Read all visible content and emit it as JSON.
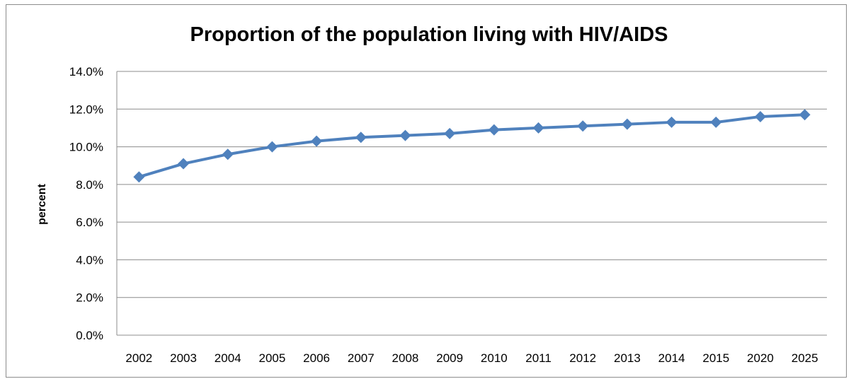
{
  "chart_data": {
    "type": "line",
    "title": "Proportion of the population living with HIV/AIDS",
    "xlabel": "",
    "ylabel": "percent",
    "categories": [
      "2002",
      "2003",
      "2004",
      "2005",
      "2006",
      "2007",
      "2008",
      "2009",
      "2010",
      "2011",
      "2012",
      "2013",
      "2014",
      "2015",
      "2020",
      "2025"
    ],
    "series": [
      {
        "values": [
          8.4,
          9.1,
          9.6,
          10.0,
          10.3,
          10.5,
          10.6,
          10.7,
          10.9,
          11.0,
          11.1,
          11.2,
          11.3,
          11.3,
          11.6,
          11.7
        ]
      }
    ],
    "ylim": [
      0,
      14
    ],
    "yticks": [
      "0.0%",
      "2.0%",
      "4.0%",
      "6.0%",
      "8.0%",
      "10.0%",
      "12.0%",
      "14.0%"
    ],
    "grid": true,
    "legend": "none",
    "colors": {
      "line": "#4f81bd",
      "grid": "#8c8c8c",
      "axis": "#8c8c8c"
    }
  }
}
